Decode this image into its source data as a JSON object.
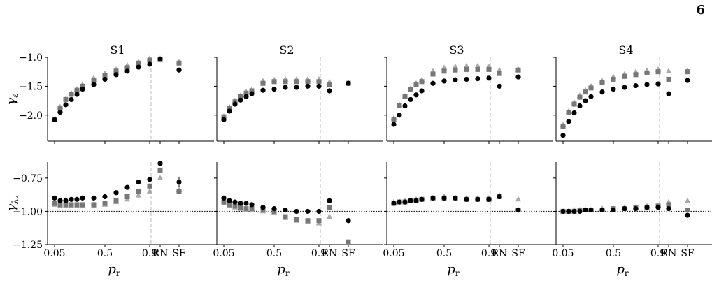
{
  "page_number": "6",
  "chart_data": {
    "type": "scatter",
    "panels": [
      "S1",
      "S2",
      "S3",
      "S4"
    ],
    "x_tick_labels": [
      "0.05",
      "0.5",
      "0.9",
      "RN",
      "SF"
    ],
    "xlabel": "p",
    "xlabel_subscript": "r",
    "marker_series": [
      {
        "marker": "circle",
        "color": "#000000"
      },
      {
        "marker": "square",
        "color": "#777777"
      },
      {
        "marker": "triangle",
        "color": "#aaaaaa"
      }
    ],
    "top_row": {
      "ylabel": "γ",
      "ylabel_subscript": "ε",
      "ylim": [
        -2.45,
        -1.0
      ],
      "yticks": [
        -1.0,
        -1.5,
        -2.0
      ],
      "ytick_labels": [
        "−1.0",
        "−1.5",
        "−2.0"
      ],
      "reference_line": null
    },
    "bottom_row": {
      "ylabel": "γ",
      "ylabel_subscript": "λ₂",
      "ylim": [
        -1.25,
        -0.63
      ],
      "yticks": [
        -0.75,
        -1.0,
        -1.25
      ],
      "ytick_labels": [
        "−0.75",
        "−1.00",
        "−1.25"
      ],
      "reference_line": -1.0
    },
    "x": [
      0.05,
      0.1,
      0.15,
      0.2,
      0.25,
      0.3,
      0.4,
      0.5,
      0.6,
      0.7,
      0.8,
      0.9
    ],
    "top": [
      {
        "name": "S1",
        "series": [
          {
            "marker": "circle",
            "values": [
              -2.08,
              -1.95,
              -1.82,
              -1.73,
              -1.64,
              -1.55,
              -1.47,
              -1.38,
              -1.3,
              -1.24,
              -1.17,
              -1.12
            ],
            "rn": -1.03,
            "sf": -1.22
          },
          {
            "marker": "square",
            "values": [
              -2.08,
              -1.88,
              -1.73,
              -1.64,
              -1.57,
              -1.5,
              -1.4,
              -1.31,
              -1.24,
              -1.18,
              -1.1,
              -1.05
            ],
            "rn": -1.04,
            "sf": -1.1
          },
          {
            "marker": "triangle",
            "values": [
              -2.08,
              -1.86,
              -1.72,
              -1.62,
              -1.55,
              -1.47,
              -1.36,
              -1.28,
              -1.21,
              -1.14,
              -1.08,
              -1.02
            ],
            "rn": -1.02,
            "sf": -1.08
          }
        ]
      },
      {
        "name": "S2",
        "series": [
          {
            "marker": "circle",
            "values": [
              -2.08,
              -1.93,
              -1.81,
              -1.74,
              -1.68,
              -1.63,
              -1.57,
              -1.55,
              -1.52,
              -1.52,
              -1.5,
              -1.5
            ],
            "rn": -1.58,
            "sf": -1.45
          },
          {
            "marker": "square",
            "values": [
              -2.03,
              -1.88,
              -1.77,
              -1.68,
              -1.62,
              -1.58,
              -1.45,
              -1.42,
              -1.42,
              -1.42,
              -1.42,
              -1.42
            ],
            "rn": -1.47,
            "sf": -1.45
          },
          {
            "marker": "triangle",
            "values": [
              -2.02,
              -1.86,
              -1.75,
              -1.66,
              -1.6,
              -1.56,
              -1.41,
              -1.39,
              -1.38,
              -1.38,
              -1.38,
              -1.38
            ],
            "rn": -1.43,
            "sf": -1.44
          }
        ]
      },
      {
        "name": "S3",
        "series": [
          {
            "marker": "circle",
            "values": [
              -2.16,
              -2.0,
              -1.84,
              -1.73,
              -1.65,
              -1.58,
              -1.45,
              -1.41,
              -1.39,
              -1.38,
              -1.37,
              -1.36
            ],
            "rn": -1.5,
            "sf": -1.34
          },
          {
            "marker": "square",
            "values": [
              -2.07,
              -1.84,
              -1.68,
              -1.55,
              -1.47,
              -1.42,
              -1.29,
              -1.24,
              -1.22,
              -1.21,
              -1.21,
              -1.21
            ],
            "rn": -1.28,
            "sf": -1.22
          },
          {
            "marker": "triangle",
            "values": [
              -2.05,
              -1.82,
              -1.67,
              -1.54,
              -1.45,
              -1.39,
              -1.24,
              -1.18,
              -1.16,
              -1.15,
              -1.15,
              -1.16
            ],
            "rn": -1.22,
            "sf": -1.21
          }
        ]
      },
      {
        "name": "S4",
        "series": [
          {
            "marker": "circle",
            "values": [
              -2.35,
              -2.11,
              -1.96,
              -1.84,
              -1.75,
              -1.68,
              -1.6,
              -1.55,
              -1.52,
              -1.49,
              -1.47,
              -1.46
            ],
            "rn": -1.63,
            "sf": -1.4
          },
          {
            "marker": "square",
            "values": [
              -2.2,
              -1.95,
              -1.81,
              -1.69,
              -1.6,
              -1.53,
              -1.44,
              -1.38,
              -1.33,
              -1.3,
              -1.27,
              -1.25
            ],
            "rn": -1.38,
            "sf": -1.25
          },
          {
            "marker": "triangle",
            "values": [
              -2.17,
              -1.93,
              -1.78,
              -1.66,
              -1.57,
              -1.5,
              -1.41,
              -1.34,
              -1.29,
              -1.25,
              -1.23,
              -1.21
            ],
            "rn": -1.24,
            "sf": -1.23
          }
        ]
      }
    ],
    "bottom": [
      {
        "name": "S1",
        "series": [
          {
            "marker": "circle",
            "values": [
              -0.9,
              -0.92,
              -0.92,
              -0.91,
              -0.91,
              -0.9,
              -0.9,
              -0.89,
              -0.86,
              -0.82,
              -0.78,
              -0.76
            ],
            "rn": -0.64,
            "sf": -0.78,
            "sf_err": 0.04
          },
          {
            "marker": "square",
            "values": [
              -0.94,
              -0.95,
              -0.95,
              -0.95,
              -0.95,
              -0.95,
              -0.95,
              -0.94,
              -0.92,
              -0.89,
              -0.85,
              -0.81
            ],
            "rn": -0.69,
            "sf": -0.85
          },
          {
            "marker": "triangle",
            "values": [
              -0.95,
              -0.96,
              -0.96,
              -0.96,
              -0.96,
              -0.96,
              -0.96,
              -0.95,
              -0.93,
              -0.91,
              -0.88,
              -0.85
            ],
            "rn": -0.75,
            "sf": -0.84
          }
        ]
      },
      {
        "name": "S2",
        "series": [
          {
            "marker": "circle",
            "values": [
              -0.9,
              -0.92,
              -0.93,
              -0.94,
              -0.94,
              -0.95,
              -0.97,
              -0.98,
              -0.99,
              -1.0,
              -1.0,
              -1.0
            ],
            "rn": -0.92,
            "sf": -1.07,
            "sf_err": 0.02
          },
          {
            "marker": "square",
            "values": [
              -0.93,
              -0.95,
              -0.96,
              -0.97,
              -0.98,
              -0.98,
              -0.99,
              -1.0,
              -1.04,
              -1.06,
              -1.07,
              -1.07
            ],
            "rn": -0.97,
            "sf": -1.23
          },
          {
            "marker": "triangle",
            "values": [
              -0.94,
              -0.96,
              -0.97,
              -0.98,
              -0.99,
              -0.99,
              -1.0,
              -1.01,
              -1.05,
              -1.07,
              -1.08,
              -1.09
            ],
            "rn": -1.04,
            "sf": -1.24
          }
        ]
      },
      {
        "name": "S3",
        "series": [
          {
            "marker": "circle",
            "values": [
              -0.94,
              -0.93,
              -0.93,
              -0.92,
              -0.92,
              -0.91,
              -0.9,
              -0.9,
              -0.9,
              -0.91,
              -0.91,
              -0.91
            ],
            "rn": -0.89,
            "sf": -0.99,
            "sf_err": 0.02
          },
          {
            "marker": "square",
            "values": [
              -0.94,
              -0.93,
              -0.93,
              -0.92,
              -0.92,
              -0.91,
              -0.9,
              -0.9,
              -0.9,
              -0.91,
              -0.91,
              -0.91
            ],
            "rn": -0.89,
            "sf": -0.99
          },
          {
            "marker": "triangle",
            "values": [
              -0.93,
              -0.93,
              -0.92,
              -0.92,
              -0.91,
              -0.91,
              -0.9,
              -0.89,
              -0.9,
              -0.9,
              -0.9,
              -0.9
            ],
            "rn": -0.88,
            "sf": -0.91
          }
        ]
      },
      {
        "name": "S4",
        "series": [
          {
            "marker": "circle",
            "values": [
              -1.0,
              -1.0,
              -1.0,
              -1.0,
              -0.99,
              -0.99,
              -0.99,
              -0.99,
              -0.98,
              -0.98,
              -0.97,
              -0.97
            ],
            "rn": -0.98,
            "sf": -1.03
          },
          {
            "marker": "square",
            "values": [
              -1.0,
              -1.0,
              -1.0,
              -0.99,
              -0.99,
              -0.99,
              -0.99,
              -0.98,
              -0.98,
              -0.97,
              -0.97,
              -0.96
            ],
            "rn": -0.95,
            "sf": -0.99
          },
          {
            "marker": "triangle",
            "values": [
              -1.0,
              -1.0,
              -0.99,
              -0.99,
              -0.99,
              -0.99,
              -0.98,
              -0.98,
              -0.97,
              -0.97,
              -0.96,
              -0.96
            ],
            "rn": -0.93,
            "sf": -0.92
          }
        ]
      }
    ]
  }
}
